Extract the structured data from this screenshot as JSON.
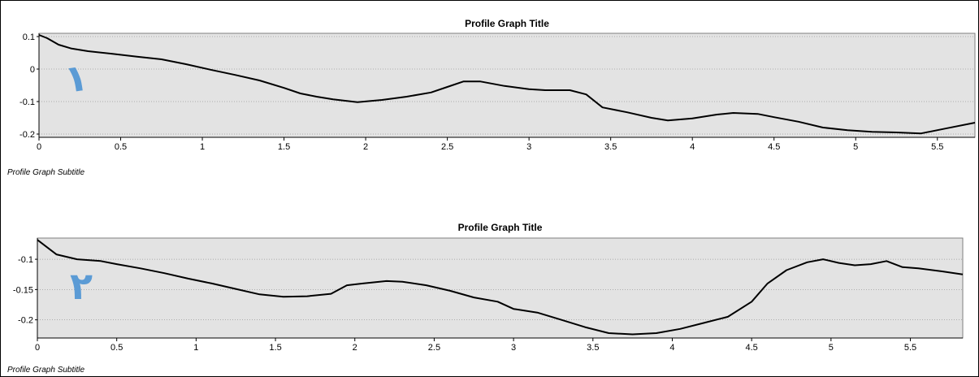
{
  "chart_data": [
    {
      "type": "line",
      "title": "Profile Graph Title",
      "subtitle": "Profile Graph Subtitle",
      "xlim": [
        0,
        5.73
      ],
      "ylim": [
        -0.21,
        0.11
      ],
      "xticks": [
        0,
        0.5,
        1,
        1.5,
        2,
        2.5,
        3,
        3.5,
        4,
        4.5,
        5,
        5.5
      ],
      "xtick_labels": [
        "0",
        "0.5",
        "1",
        "1.5",
        "2",
        "2.5",
        "3",
        "3.5",
        "4",
        "4.5",
        "5",
        "5.5"
      ],
      "yticks": [
        0.1,
        0,
        -0.1,
        -0.2
      ],
      "ytick_labels": [
        "0.1",
        "0",
        "-0.1",
        "-0.2"
      ],
      "grid": "horizontal dotted",
      "plot_background": "#e3e3e3",
      "line_color": "#000000",
      "annotation": {
        "glyph": "١",
        "color": "#5b9bd5"
      },
      "series": [
        {
          "x": [
            0,
            0.05,
            0.12,
            0.2,
            0.3,
            0.45,
            0.6,
            0.75,
            0.9,
            1.05,
            1.2,
            1.35,
            1.5,
            1.6,
            1.7,
            1.8,
            1.95,
            2.1,
            2.25,
            2.4,
            2.5,
            2.6,
            2.7,
            2.85,
            3.0,
            3.1,
            3.25,
            3.35,
            3.45,
            3.6,
            3.75,
            3.85,
            4.0,
            4.15,
            4.25,
            4.4,
            4.5,
            4.65,
            4.8,
            4.95,
            5.1,
            5.25,
            5.4,
            5.55,
            5.73
          ],
          "y": [
            0.105,
            0.095,
            0.075,
            0.063,
            0.055,
            0.047,
            0.038,
            0.03,
            0.015,
            -0.002,
            -0.018,
            -0.035,
            -0.058,
            -0.075,
            -0.085,
            -0.093,
            -0.102,
            -0.095,
            -0.085,
            -0.072,
            -0.055,
            -0.038,
            -0.038,
            -0.052,
            -0.062,
            -0.065,
            -0.065,
            -0.078,
            -0.118,
            -0.133,
            -0.15,
            -0.158,
            -0.152,
            -0.14,
            -0.135,
            -0.138,
            -0.148,
            -0.162,
            -0.18,
            -0.188,
            -0.193,
            -0.195,
            -0.198,
            -0.183,
            -0.165
          ]
        }
      ]
    },
    {
      "type": "line",
      "title": "Profile Graph Title",
      "subtitle": "Profile Graph Subtitle",
      "xlim": [
        0,
        5.83
      ],
      "ylim": [
        -0.23,
        -0.065
      ],
      "xticks": [
        0,
        0.5,
        1,
        1.5,
        2,
        2.5,
        3,
        3.5,
        4,
        4.5,
        5,
        5.5
      ],
      "xtick_labels": [
        "0",
        "0.5",
        "1",
        "1.5",
        "2",
        "2.5",
        "3",
        "3.5",
        "4",
        "4.5",
        "5",
        "5.5"
      ],
      "yticks": [
        -0.1,
        -0.15,
        -0.2
      ],
      "ytick_labels": [
        "-0.1",
        "-0.15",
        "-0.2"
      ],
      "grid": "horizontal dotted",
      "plot_background": "#e3e3e3",
      "line_color": "#000000",
      "annotation": {
        "glyph": "٢",
        "color": "#5b9bd5"
      },
      "series": [
        {
          "x": [
            0,
            0.05,
            0.12,
            0.25,
            0.4,
            0.5,
            0.65,
            0.8,
            0.95,
            1.1,
            1.25,
            1.4,
            1.55,
            1.7,
            1.85,
            1.95,
            2.05,
            2.2,
            2.3,
            2.45,
            2.6,
            2.75,
            2.9,
            3.0,
            3.15,
            3.3,
            3.45,
            3.6,
            3.75,
            3.9,
            4.05,
            4.2,
            4.35,
            4.5,
            4.6,
            4.72,
            4.85,
            4.95,
            5.05,
            5.15,
            5.25,
            5.35,
            5.45,
            5.55,
            5.7,
            5.83
          ],
          "y": [
            -0.068,
            -0.078,
            -0.092,
            -0.1,
            -0.103,
            -0.108,
            -0.115,
            -0.123,
            -0.132,
            -0.14,
            -0.149,
            -0.158,
            -0.162,
            -0.161,
            -0.157,
            -0.143,
            -0.14,
            -0.136,
            -0.137,
            -0.143,
            -0.152,
            -0.163,
            -0.17,
            -0.182,
            -0.188,
            -0.2,
            -0.212,
            -0.222,
            -0.224,
            -0.222,
            -0.215,
            -0.205,
            -0.195,
            -0.17,
            -0.14,
            -0.118,
            -0.105,
            -0.1,
            -0.106,
            -0.11,
            -0.108,
            -0.103,
            -0.113,
            -0.115,
            -0.12,
            -0.125
          ]
        }
      ]
    }
  ]
}
